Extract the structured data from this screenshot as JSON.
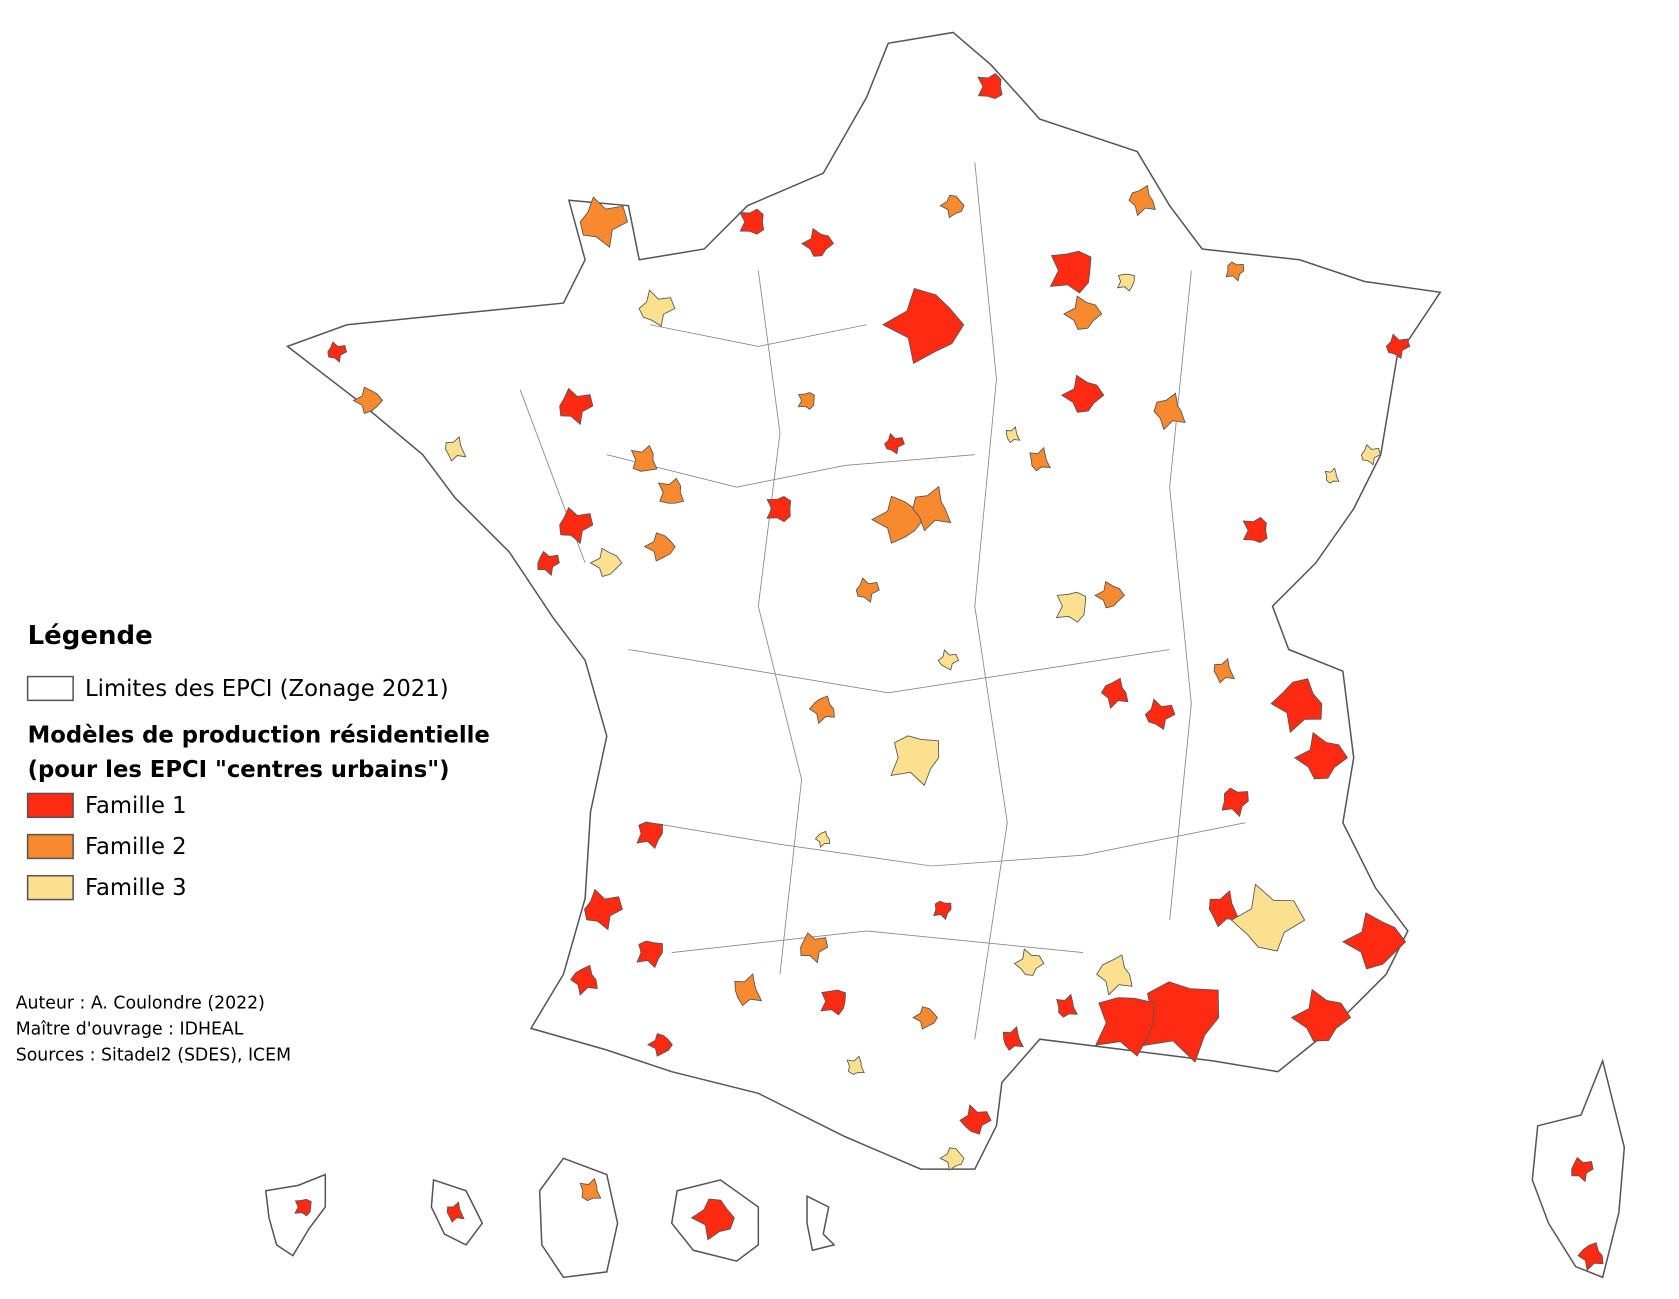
{
  "legend": {
    "title": "Légende",
    "boundary": {
      "label": "Limites des EPCI (Zonage 2021)",
      "color": "#ffffff"
    },
    "subtitle_lines": [
      "Modèles de production résidentielle",
      "(pour les EPCI \"centres urbains\")"
    ],
    "families": [
      {
        "label": "Famille 1",
        "color": "#ff2a12"
      },
      {
        "label": "Famille 2",
        "color": "#f7892f"
      },
      {
        "label": "Famille 3",
        "color": "#fbe08f"
      }
    ]
  },
  "credits": [
    "Auteur : A. Coulondre (2022)",
    "Maître d'ouvrage : IDHEAL",
    "Sources : Sitadel2 (SDES), ICEM"
  ]
}
